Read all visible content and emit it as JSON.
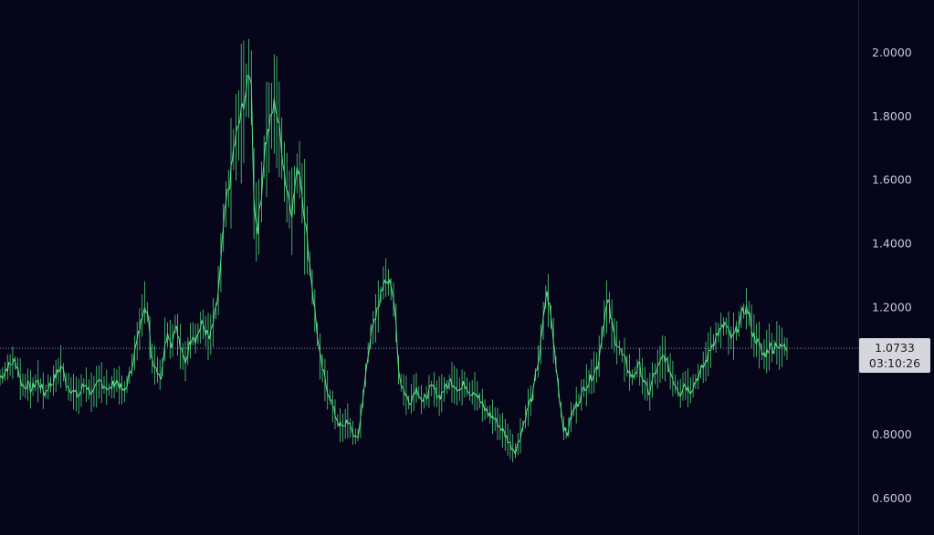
{
  "chart_data": {
    "type": "candlestick",
    "title": "",
    "xlabel": "",
    "ylabel": "",
    "ylim": [
      0.55,
      2.1
    ],
    "y_ticks": [
      "2.0000",
      "1.8000",
      "1.6000",
      "1.4000",
      "1.2000",
      "0.8000",
      "0.6000"
    ],
    "grid": false,
    "legend": "none",
    "current_price": 1.0733,
    "current_price_label": "1.0733",
    "countdown_label": "03:10:26",
    "series": [
      {
        "values": [
          0.98,
          0.99,
          1.01,
          1.02,
          1.03,
          1.02,
          0.97,
          0.95,
          0.96,
          0.94,
          0.96,
          0.97,
          0.95,
          0.93,
          0.95,
          0.96,
          0.98,
          1.0,
          1.02,
          0.97,
          0.95,
          0.94,
          0.93,
          0.92,
          0.95,
          0.96,
          0.94,
          0.93,
          0.95,
          0.97,
          0.96,
          0.95,
          0.94,
          0.96,
          0.97,
          0.95,
          0.93,
          0.96,
          1.0,
          1.05,
          1.1,
          1.15,
          1.22,
          1.18,
          1.05,
          1.02,
          1.0,
          0.98,
          1.1,
          1.12,
          1.08,
          1.15,
          1.1,
          1.05,
          1.03,
          1.08,
          1.12,
          1.1,
          1.13,
          1.15,
          1.12,
          1.1,
          1.15,
          1.2,
          1.3,
          1.45,
          1.55,
          1.6,
          1.7,
          1.75,
          1.8,
          1.85,
          1.9,
          1.95,
          1.5,
          1.45,
          1.55,
          1.7,
          1.75,
          1.8,
          1.85,
          1.78,
          1.7,
          1.6,
          1.55,
          1.5,
          1.6,
          1.65,
          1.55,
          1.45,
          1.35,
          1.25,
          1.15,
          1.05,
          1.0,
          0.95,
          0.92,
          0.88,
          0.85,
          0.83,
          0.82,
          0.85,
          0.82,
          0.8,
          0.79,
          0.85,
          0.95,
          1.05,
          1.12,
          1.15,
          1.2,
          1.25,
          1.3,
          1.28,
          1.25,
          1.2,
          1.0,
          0.95,
          0.93,
          0.9,
          0.92,
          0.95,
          0.93,
          0.9,
          0.92,
          0.94,
          0.95,
          0.93,
          0.92,
          0.94,
          0.95,
          0.97,
          0.96,
          0.95,
          0.94,
          0.96,
          0.95,
          0.93,
          0.94,
          0.92,
          0.9,
          0.88,
          0.87,
          0.86,
          0.85,
          0.83,
          0.82,
          0.8,
          0.78,
          0.76,
          0.75,
          0.78,
          0.82,
          0.86,
          0.9,
          0.92,
          1.0,
          1.05,
          1.15,
          1.25,
          1.2,
          1.1,
          1.0,
          0.9,
          0.82,
          0.8,
          0.85,
          0.88,
          0.9,
          0.92,
          0.95,
          0.96,
          0.98,
          1.0,
          1.02,
          1.1,
          1.18,
          1.22,
          1.15,
          1.1,
          1.08,
          1.05,
          1.03,
          1.0,
          0.98,
          1.0,
          1.02,
          0.98,
          0.95,
          0.93,
          0.98,
          1.0,
          1.02,
          1.05,
          1.03,
          1.0,
          0.97,
          0.95,
          0.93,
          0.96,
          0.95,
          0.94,
          0.96,
          0.98,
          1.0,
          1.02,
          1.05,
          1.08,
          1.1,
          1.12,
          1.13,
          1.15,
          1.12,
          1.1,
          1.12,
          1.15,
          1.18,
          1.2,
          1.18,
          1.12,
          1.1,
          1.08,
          1.05,
          1.06,
          1.08,
          1.07,
          1.09,
          1.07,
          1.08,
          1.07
        ]
      }
    ]
  }
}
